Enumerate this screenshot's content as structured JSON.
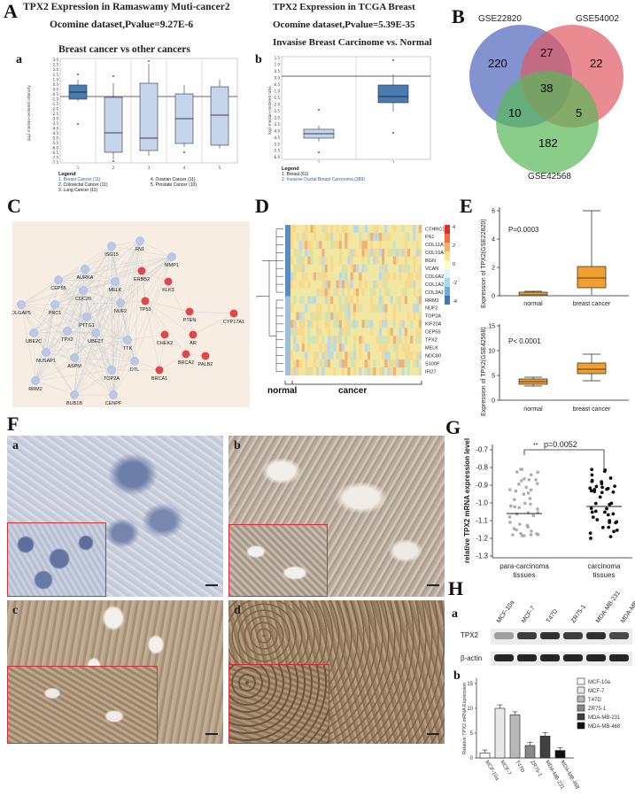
{
  "panelA": {
    "letter": "A",
    "title1": "TPX2 Expression in Ramaswamy Muti-cancer2",
    "subtitle1": "Ocomine dataset,Pvalue=9.27E-6",
    "heading1": "Breast cancer  vs other cancers",
    "sub_a": "a",
    "ylabel_a": "log2 median-centered intensity",
    "yticks_a": [
      "3.0",
      "2.5",
      "2.0",
      "1.5",
      "1.0",
      "0.5",
      "0.0",
      "-0.5",
      "-1.0",
      "-1.5",
      "-2.0",
      "-2.5",
      "-3.0",
      "-3.5",
      "-4.0",
      "-4.5",
      "-5.0",
      "-5.5",
      "-6.0",
      "-6.5",
      "-7.0",
      "-7.5"
    ],
    "xticks_a": [
      "1",
      "2",
      "3",
      "4",
      "5"
    ],
    "legend_title": "Legend",
    "legend_a": [
      "1. Breast Cancer (11)",
      "2. Colorectal Cancer (11)",
      "3. Lung Cancer (11)",
      "4. Ovarian Cancer (11)",
      "5. Prostate Cancer (10)"
    ],
    "title2": "TPX2 Expression in TCGA Breast",
    "subtitle2": "Ocomine dataset,Pvalue=5.39E-35",
    "heading2": "Invasise Breast Carcinome vs. Normal",
    "sub_b": "b",
    "ylabel_b": "log2 median-centered ratio",
    "yticks_b": [
      "1.5",
      "1.0",
      "0.5",
      "0.0",
      "-0.5",
      "-1.0",
      "-1.5",
      "-2.0",
      "-2.5",
      "-3.0",
      "-3.5",
      "-4.0",
      "-4.5",
      "-5.0",
      "-5.5",
      "-6.0"
    ],
    "xticks_b": [
      "1",
      "2"
    ],
    "legend_b": [
      "1. Breast (61)",
      "2. Invasive Ductal Breast Carcinoma (389)"
    ]
  },
  "panelB": {
    "letter": "B",
    "sets": [
      "GSE22820",
      "GSE54002",
      "GSE42568"
    ],
    "regions": {
      "only1": "220",
      "only2": "22",
      "only3": "182",
      "s12": "27",
      "s13": "10",
      "s23": "5",
      "all": "38"
    },
    "colors": {
      "set1": "#5a6fc0",
      "set2": "#e05a62",
      "set3": "#58b858"
    }
  },
  "panelC": {
    "letter": "C",
    "blue_nodes": [
      "ISG15",
      "FN1",
      "MMP1",
      "AURKA",
      "CEP55",
      "CDC20",
      "MELK",
      "DLGAP5",
      "PRC1",
      "NUF2",
      "UBE2C",
      "PTTG1",
      "TPX2",
      "UBE2T",
      "TTK",
      "NUSAP1",
      "ASPM",
      "DTL",
      "TOP2A",
      "RRM2",
      "BUB1B",
      "CENPF"
    ],
    "red_nodes": [
      "ERBB2",
      "KLK3",
      "TP53",
      "PTEN",
      "CYP17A1",
      "CHEK2",
      "AR",
      "BRCA2",
      "PALB2",
      "BRCA1"
    ],
    "node_blue": "#b8c8ec",
    "node_red": "#e04848",
    "bg": "#f8ede2"
  },
  "panelD": {
    "letter": "D",
    "genes": [
      "CTHRC1",
      "FN1",
      "COL11A1",
      "COL10A1",
      "BGN",
      "VCAN",
      "COL6A2",
      "COL1A2",
      "COL3A1",
      "RRM2",
      "NUF2",
      "TOP2A",
      "KIF20A",
      "CEP55",
      "TPX2",
      "MELK",
      "NDC80",
      "S100P",
      "IFI27"
    ],
    "scale": [
      "4",
      "2",
      "0",
      "-2",
      "-4"
    ],
    "xlabel_normal": "normal",
    "xlabel_cancer": "cancer"
  },
  "panelE": {
    "letter": "E",
    "top": {
      "ylabel": "Expression of TPX2(GSE22820)",
      "p": "P=0.0003",
      "yticks": [
        "0",
        "2",
        "4",
        "6"
      ],
      "cats": [
        "normal",
        "breast cancer"
      ]
    },
    "bottom": {
      "ylabel": "Expression of TPX2(GSE42568)",
      "p": "P< 0.0001",
      "yticks": [
        "0",
        "5",
        "10",
        "15"
      ],
      "cats": [
        "normal",
        "breast cancer"
      ]
    },
    "box_color": "#f0a030"
  },
  "panelF": {
    "letter": "F",
    "subs": [
      "a",
      "b",
      "c",
      "d"
    ]
  },
  "panelG": {
    "letter": "G",
    "ylabel": "relative TPX2 mRNA expression level",
    "yticks": [
      "-0.7",
      "-0.8",
      "-0.9",
      "-1.0",
      "-1.1",
      "-1.2",
      "-1.3"
    ],
    "stars": "**",
    "p": "p=0.0052",
    "cats": [
      "para-carcinoma\ntissues",
      "carcinoma\ntissues"
    ],
    "cat1a": "para-carcinoma",
    "cat1b": "tissues",
    "cat2a": "carcinoma",
    "cat2b": "tissues"
  },
  "panelH": {
    "letter": "H",
    "sub_a": "a",
    "sub_b": "b",
    "lanes": [
      "MCF-10a",
      "MCF-7",
      "T47D",
      "ZR75-1",
      "MDA-MB-231",
      "MDA-MB-468"
    ],
    "blot_labels": [
      "TPX2",
      "β-actin"
    ],
    "ylabel": "Relative TPX2 mRNA Expression",
    "yticks": [
      "0",
      "5",
      "10",
      "15"
    ],
    "bar_xlabels": [
      "MCF-10a",
      "MCF-7",
      "T47D",
      "ZR75-1",
      "MDA-MB-231",
      "MDA-MB-468"
    ],
    "legend": [
      "MCF-10a",
      "MCF-7",
      "T47D",
      "ZR75-1",
      "MDA-MB-231",
      "MDA-MB-468"
    ]
  },
  "chart_data": [
    {
      "type": "bar",
      "title": "",
      "ylabel": "Relative TPX2 mRNA Expression",
      "ylim": [
        0,
        15
      ],
      "categories": [
        "MCF-10a",
        "MCF-7",
        "T47D",
        "ZR75-1",
        "MDA-MB-231",
        "MDA-MB-468"
      ],
      "values": [
        1.0,
        10.0,
        8.7,
        2.5,
        4.4,
        1.5
      ],
      "errors": [
        0.6,
        0.7,
        0.6,
        0.6,
        0.7,
        0.6
      ],
      "colors": [
        "#ffffff",
        "#e8e8e8",
        "#b8b8b8",
        "#888888",
        "#404040",
        "#101010"
      ]
    }
  ]
}
